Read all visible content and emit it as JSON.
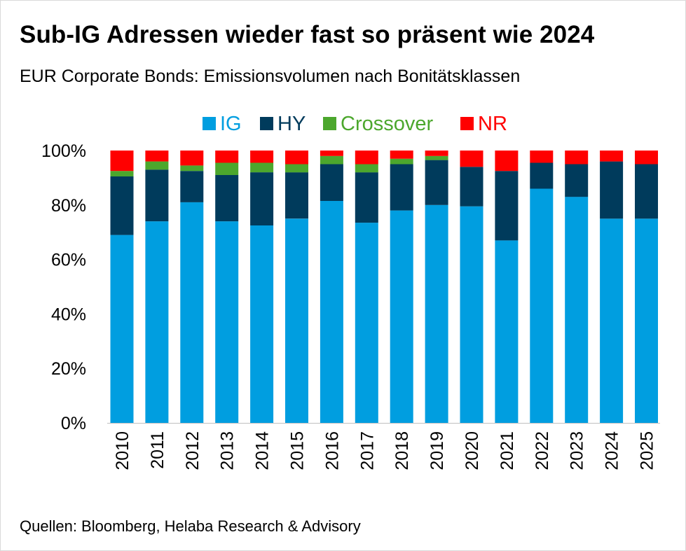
{
  "header": {
    "title": "Sub-IG Adressen wieder fast so präsent wie 2024",
    "subtitle": "EUR Corporate Bonds: Emissionsvolumen nach Bonitätsklassen"
  },
  "footer": {
    "source": "Quellen: Bloomberg, Helaba Research & Advisory"
  },
  "colors": {
    "IG": "#009ee0",
    "HY": "#003b5c",
    "Crossover": "#4ca72d",
    "NR": "#ff0000"
  },
  "chart_data": {
    "type": "bar",
    "stacked": true,
    "title": "Sub-IG Adressen wieder fast so präsent wie 2024",
    "subtitle": "EUR Corporate Bonds: Emissionsvolumen nach Bonitätsklassen",
    "xlabel": "",
    "ylabel": "",
    "ylim": [
      0,
      100
    ],
    "yticks": [
      0,
      20,
      40,
      60,
      80,
      100
    ],
    "ytick_labels": [
      "0%",
      "20%",
      "40%",
      "60%",
      "80%",
      "100%"
    ],
    "grid": false,
    "legend_position": "top-center",
    "categories": [
      "2010",
      "2011",
      "2012",
      "2013",
      "2014",
      "2015",
      "2016",
      "2017",
      "2018",
      "2019",
      "2020",
      "2021",
      "2022",
      "2023",
      "2024",
      "2025"
    ],
    "series": [
      {
        "name": "IG",
        "values": [
          69,
          74,
          81,
          74,
          72.5,
          75,
          81.5,
          73.5,
          78,
          80,
          79.5,
          67,
          86,
          83,
          75,
          75
        ]
      },
      {
        "name": "HY",
        "values": [
          21.5,
          19,
          11.5,
          17,
          19.5,
          17,
          13.5,
          18.5,
          17,
          16.5,
          14.5,
          25.5,
          9.5,
          12,
          21,
          20
        ]
      },
      {
        "name": "Crossover",
        "values": [
          2,
          3,
          2,
          4.5,
          3.5,
          3,
          3,
          3,
          2,
          1.5,
          0,
          0,
          0,
          0,
          0,
          0
        ]
      },
      {
        "name": "NR",
        "values": [
          7.5,
          4,
          5.5,
          4.5,
          4.5,
          5,
          2,
          5,
          3,
          2,
          6,
          7.5,
          4.5,
          5,
          4,
          5
        ]
      }
    ]
  }
}
